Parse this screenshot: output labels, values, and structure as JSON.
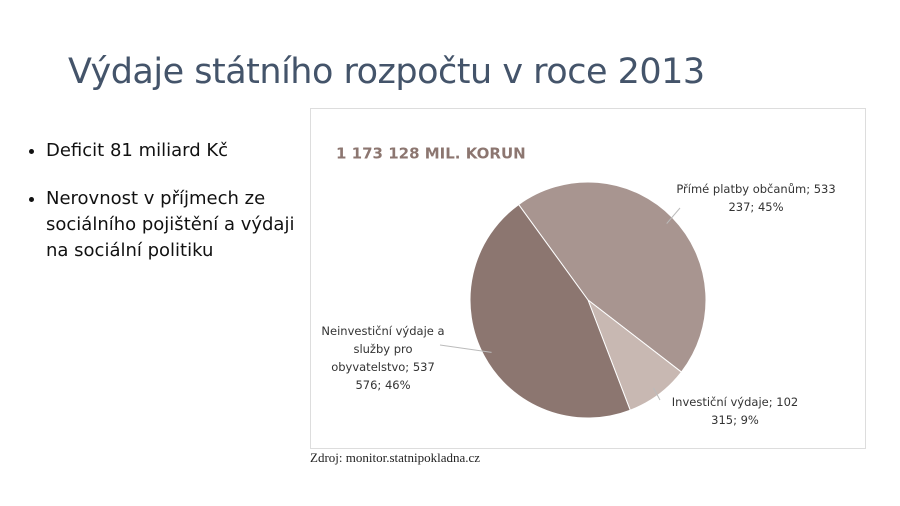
{
  "title": "Výdaje státního rozpočtu v roce 2013",
  "bullets": [
    "Deficit 81 miliard Kč",
    "Nerovnost v příjmech ze sociálního pojištění a výdaji na sociální politiku"
  ],
  "source": "Zdroj: monitor.statnipokladna.cz",
  "chart_data": {
    "type": "pie",
    "title": "1 173 128 MIL. KORUN",
    "categories": [
      "Přímé platby občanům;",
      "Investiční výdaje;",
      "Neinvestiční výdaje a služby pro obyvatelstvo;"
    ],
    "values": [
      533237,
      102315,
      537576
    ],
    "value_labels": [
      "533 237; 45%",
      "102 315; 9%",
      "537 576; 46%"
    ],
    "colors": [
      "#a89590",
      "#c8b8b2",
      "#8c7670"
    ]
  }
}
